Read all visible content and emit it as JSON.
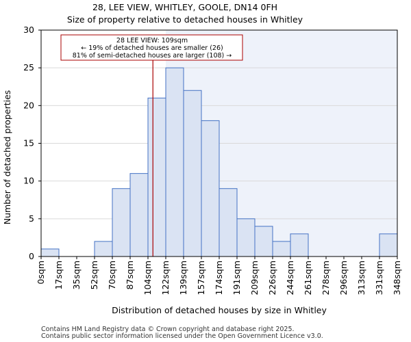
{
  "chart_data": {
    "type": "bar",
    "title_lines": [
      "28, LEE VIEW, WHITLEY, GOOLE, DN14 0FH",
      "Size of property relative to detached houses in Whitley"
    ],
    "xlabel": "Distribution of detached houses by size in Whitley",
    "ylabel": "Number of detached properties",
    "bin_edges": [
      0,
      17,
      35,
      52,
      70,
      87,
      104,
      122,
      139,
      157,
      174,
      191,
      209,
      226,
      244,
      261,
      278,
      296,
      313,
      331,
      348
    ],
    "tick_labels": [
      "0sqm",
      "17sqm",
      "35sqm",
      "52sqm",
      "70sqm",
      "87sqm",
      "104sqm",
      "122sqm",
      "139sqm",
      "157sqm",
      "174sqm",
      "191sqm",
      "209sqm",
      "226sqm",
      "244sqm",
      "261sqm",
      "278sqm",
      "296sqm",
      "313sqm",
      "331sqm",
      "348sqm"
    ],
    "values": [
      1,
      0,
      0,
      2,
      9,
      11,
      21,
      25,
      22,
      18,
      9,
      5,
      4,
      2,
      3,
      0,
      0,
      0,
      0,
      3
    ],
    "ylim": [
      0,
      30
    ],
    "yticks": [
      0,
      5,
      10,
      15,
      20,
      25,
      30
    ],
    "property_value": 109,
    "highlight_bins": 7,
    "annotation": {
      "lines": [
        "28 LEE VIEW: 109sqm",
        "← 19% of detached houses are smaller (26)",
        "81% of semi-detached houses are larger (108) →"
      ]
    },
    "colors": {
      "bar_fill": "#dae3f3",
      "bar_edge": "#4472c4",
      "shade_left": "#ffffff",
      "shade_right": "#eef2fa",
      "property_line": "#aa0000"
    }
  },
  "footer": {
    "line1": "Contains HM Land Registry data © Crown copyright and database right 2025.",
    "line2": "Contains public sector information licensed under the Open Government Licence v3.0."
  }
}
